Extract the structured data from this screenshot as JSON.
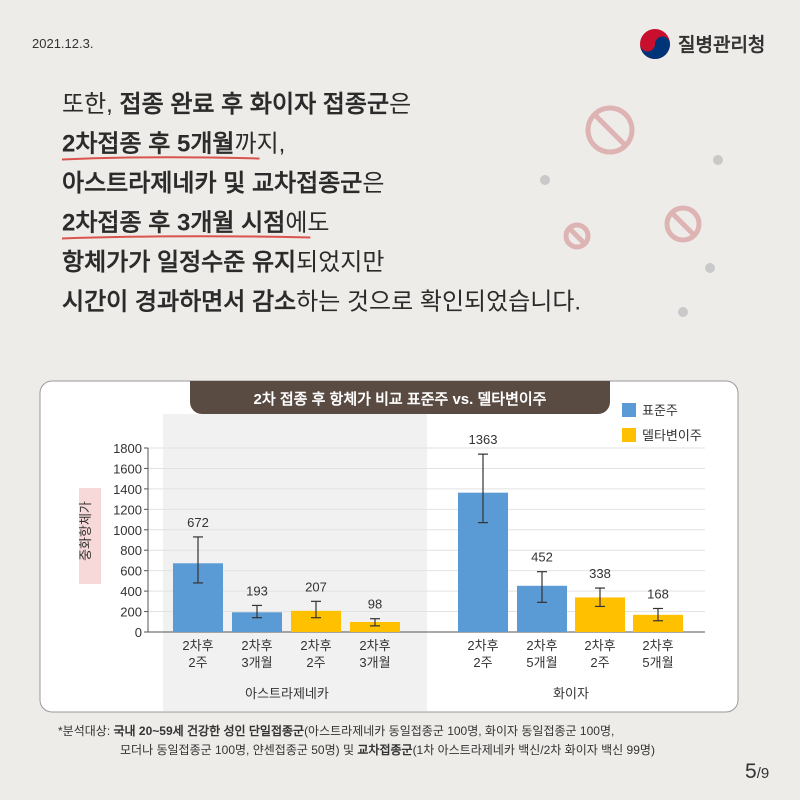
{
  "date": "2021.12.3.",
  "agency": "질병관리청",
  "headline": [
    [
      {
        "text": "또한, ",
        "bold": false
      },
      {
        "text": "접종 완료 후 화이자 접종군",
        "bold": true
      },
      {
        "text": "은",
        "bold": false
      }
    ],
    [
      {
        "text": "2차접종 후 5개월",
        "bold": true,
        "underline": true
      },
      {
        "text": "까지,",
        "bold": false
      }
    ],
    [
      {
        "text": "아스트라제네카 및 교차접종군",
        "bold": true
      },
      {
        "text": "은",
        "bold": false
      }
    ],
    [
      {
        "text": "2차접종 후 3개월 시점",
        "bold": true,
        "underline": true
      },
      {
        "text": "에도",
        "bold": false
      }
    ],
    [
      {
        "text": "항체가가 일정수준 유지",
        "bold": true
      },
      {
        "text": "되었지만",
        "bold": false
      }
    ],
    [
      {
        "text": "시간이 경과하면서 감소",
        "bold": true
      },
      {
        "text": "하는 것으로 확인되었습니다.",
        "bold": false
      }
    ]
  ],
  "chart_data": {
    "type": "bar",
    "title": "2차 접종 후 항체가 비교 표준주 vs. 델타변이주",
    "y_label": "중화항체가",
    "categories": [
      [
        "2차후",
        "2주"
      ],
      [
        "2차후",
        "3개월"
      ],
      [
        "2차후",
        "2주"
      ],
      [
        "2차후",
        "3개월"
      ],
      [
        "2차후",
        "2주"
      ],
      [
        "2차후",
        "5개월"
      ],
      [
        "2차후",
        "2주"
      ],
      [
        "2차후",
        "5개월"
      ]
    ],
    "group_labels": [
      "아스트라제네카",
      "화이자"
    ],
    "series": [
      {
        "name": "표준주",
        "color": "#5b9bd5",
        "values": [
          672,
          193,
          null,
          null,
          1363,
          452,
          null,
          null
        ],
        "errors": [
          [
            480,
            930
          ],
          [
            140,
            260
          ],
          null,
          null,
          [
            1070,
            1740
          ],
          [
            290,
            590
          ],
          null,
          null
        ]
      },
      {
        "name": "델타변이주",
        "color": "#ffc000",
        "values": [
          null,
          null,
          207,
          98,
          null,
          null,
          338,
          168
        ],
        "errors": [
          null,
          null,
          [
            140,
            300
          ],
          [
            60,
            130
          ],
          null,
          null,
          [
            250,
            430
          ],
          [
            110,
            230
          ]
        ]
      }
    ],
    "ylim": [
      0,
      1800
    ],
    "yticks": [
      0,
      200,
      400,
      600,
      800,
      1000,
      1200,
      1400,
      1600,
      1800
    ],
    "grid": true,
    "legend": "top-right"
  },
  "footnote": [
    [
      {
        "text": "*분석대상: ",
        "bold": false
      },
      {
        "text": "국내 20~59세 건강한 성인 단일접종군",
        "bold": true
      },
      {
        "text": "(아스트라제네카 동일접종군 100명, 화이자 동일접종군 100명,",
        "bold": false
      }
    ],
    [
      {
        "text": "모더나 동일접종군 100명, 얀센접종군 50명) 및 ",
        "bold": false
      },
      {
        "text": "교차접종군",
        "bold": true
      },
      {
        "text": "(1차 아스트라제네카 백신/2차 화이자 백신 99명)",
        "bold": false
      }
    ]
  ],
  "page": [
    "5",
    "/9"
  ]
}
